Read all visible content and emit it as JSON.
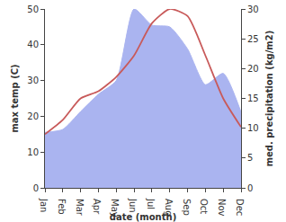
{
  "chart_data": {
    "type": "line",
    "xlabel": "date (month)",
    "ylabel": "max temp (C)",
    "y2label": "med. precipitation (kg/m2)",
    "categories": [
      "Jan",
      "Feb",
      "Mar",
      "Apr",
      "May",
      "Jun",
      "Jul",
      "Aug",
      "Sep",
      "Oct",
      "Nov",
      "Dec"
    ],
    "series": [
      {
        "type": "area",
        "axis": "y2",
        "color": "#aab4f0",
        "values": [
          9.3,
          9.8,
          12.8,
          15.7,
          18,
          30,
          27.3,
          27,
          23.3,
          17.3,
          19.2,
          12.7
        ]
      },
      {
        "type": "line",
        "color": "#c85a5a",
        "values": [
          15,
          19,
          25,
          27,
          31,
          37,
          46,
          50,
          48,
          37,
          25,
          17
        ]
      }
    ],
    "ylim": [
      0,
      50
    ],
    "yticks": [
      0,
      10,
      20,
      30,
      40,
      50
    ],
    "y2lim": [
      0,
      30
    ],
    "y2ticks": [
      0,
      5,
      10,
      15,
      20,
      25,
      30
    ],
    "grid": false
  }
}
